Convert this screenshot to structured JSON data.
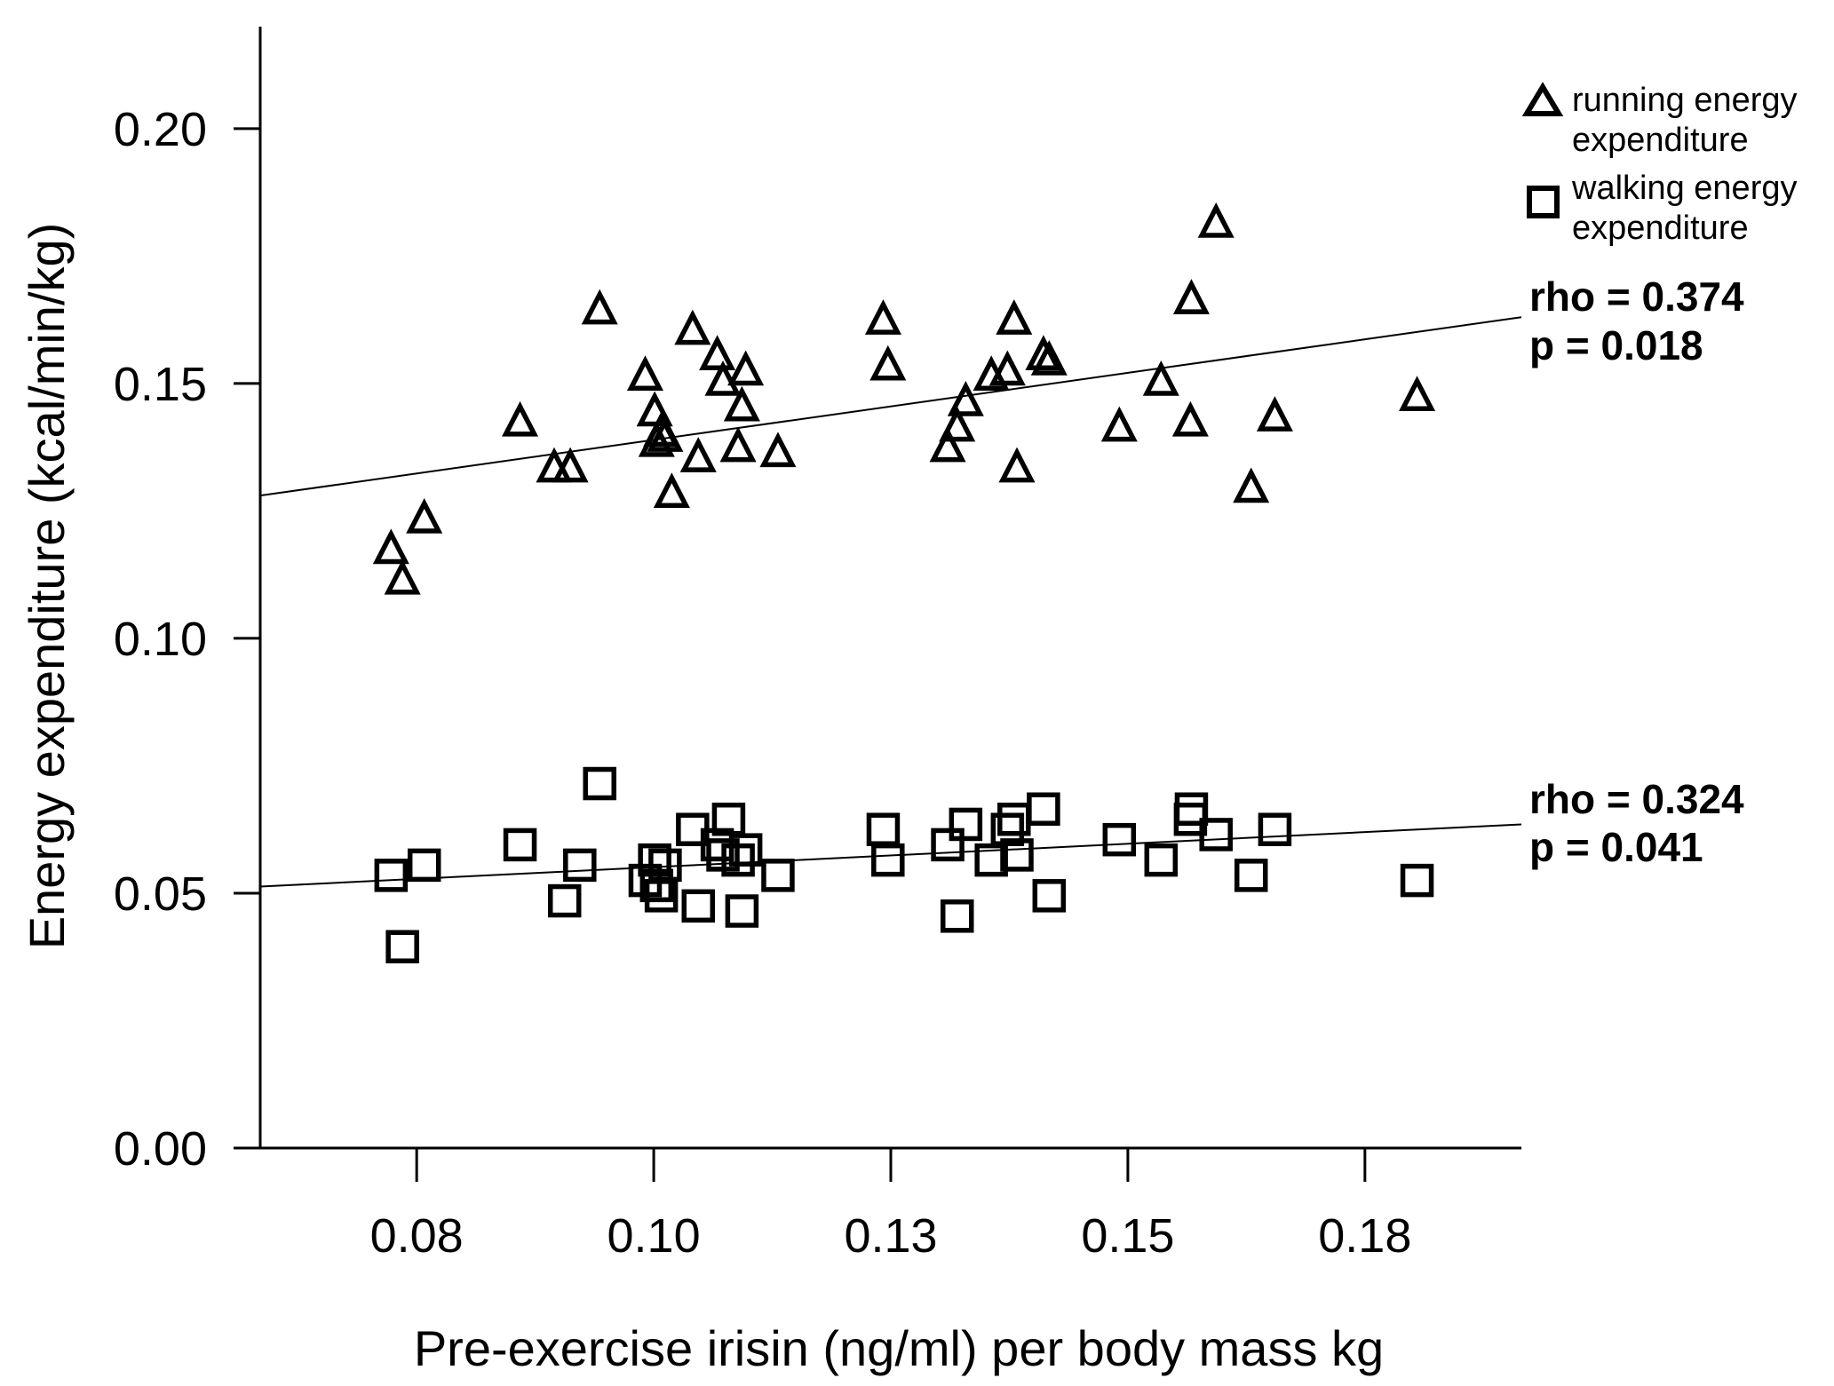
{
  "chart_data": {
    "type": "scatter",
    "title": "",
    "xlabel": "Pre-exercise irisin (ng/ml) per body mass kg",
    "ylabel": "Energy expenditure (kcal/min/kg)",
    "xlim": [
      0.0585,
      0.1915
    ],
    "ylim": [
      0.0,
      0.22
    ],
    "xticks": [
      0.075,
      0.1,
      0.125,
      0.15,
      0.175
    ],
    "xtick_labels": [
      "0.08",
      "0.10",
      "0.13",
      "0.15",
      "0.18"
    ],
    "yticks": [
      0.0,
      0.05,
      0.1,
      0.15,
      0.2
    ],
    "ytick_labels": [
      "0.00",
      "0.05",
      "0.10",
      "0.15",
      "0.20"
    ],
    "grid": false,
    "legend_position": "top-right",
    "series": [
      {
        "name": "running",
        "legend_lines": [
          "running energy",
          "expenditure"
        ],
        "marker": "triangle",
        "fit": {
          "x": [
            0.0585,
            0.1915
          ],
          "y": [
            0.128,
            0.163
          ]
        },
        "stats": {
          "rho": "rho = 0.374",
          "p": "p = 0.018"
        },
        "points": [
          [
            0.0723,
            0.1175
          ],
          [
            0.0735,
            0.1115
          ],
          [
            0.0758,
            0.1235
          ],
          [
            0.0859,
            0.1425
          ],
          [
            0.0895,
            0.1335
          ],
          [
            0.0912,
            0.1335
          ],
          [
            0.0943,
            0.1645
          ],
          [
            0.0991,
            0.1515
          ],
          [
            0.1001,
            0.1445
          ],
          [
            0.1003,
            0.1385
          ],
          [
            0.1008,
            0.1405
          ],
          [
            0.1012,
            0.1395
          ],
          [
            0.1019,
            0.1285
          ],
          [
            0.1041,
            0.1605
          ],
          [
            0.1047,
            0.1355
          ],
          [
            0.1067,
            0.1555
          ],
          [
            0.1073,
            0.1505
          ],
          [
            0.1089,
            0.1375
          ],
          [
            0.1093,
            0.1455
          ],
          [
            0.1097,
            0.1525
          ],
          [
            0.1131,
            0.1365
          ],
          [
            0.1242,
            0.1625
          ],
          [
            0.1247,
            0.1535
          ],
          [
            0.131,
            0.1375
          ],
          [
            0.132,
            0.1415
          ],
          [
            0.1329,
            0.1465
          ],
          [
            0.1356,
            0.1515
          ],
          [
            0.1373,
            0.1525
          ],
          [
            0.138,
            0.1625
          ],
          [
            0.1383,
            0.1335
          ],
          [
            0.1411,
            0.1555
          ],
          [
            0.1417,
            0.1545
          ],
          [
            0.1491,
            0.1415
          ],
          [
            0.1535,
            0.1505
          ],
          [
            0.1566,
            0.1425
          ],
          [
            0.1567,
            0.1665
          ],
          [
            0.1593,
            0.1815
          ],
          [
            0.163,
            0.1295
          ],
          [
            0.1655,
            0.1435
          ],
          [
            0.1805,
            0.1475
          ]
        ]
      },
      {
        "name": "walking",
        "legend_lines": [
          "walking energy",
          "expenditure"
        ],
        "marker": "square",
        "fit": {
          "x": [
            0.0585,
            0.1915
          ],
          "y": [
            0.0513,
            0.0635
          ]
        },
        "stats": {
          "rho": "rho = 0.324",
          "p": "p = 0.041"
        },
        "points": [
          [
            0.0723,
            0.0535
          ],
          [
            0.0735,
            0.0395
          ],
          [
            0.0758,
            0.0555
          ],
          [
            0.0859,
            0.0595
          ],
          [
            0.0906,
            0.0485
          ],
          [
            0.0922,
            0.0555
          ],
          [
            0.0943,
            0.0715
          ],
          [
            0.0991,
            0.0525
          ],
          [
            0.1001,
            0.0565
          ],
          [
            0.1003,
            0.0515
          ],
          [
            0.1008,
            0.0495
          ],
          [
            0.1012,
            0.0555
          ],
          [
            0.1041,
            0.0625
          ],
          [
            0.1047,
            0.0475
          ],
          [
            0.1067,
            0.0595
          ],
          [
            0.1073,
            0.0575
          ],
          [
            0.1079,
            0.0645
          ],
          [
            0.1089,
            0.0565
          ],
          [
            0.1093,
            0.0465
          ],
          [
            0.1097,
            0.0585
          ],
          [
            0.1131,
            0.0535
          ],
          [
            0.1242,
            0.0625
          ],
          [
            0.1247,
            0.0565
          ],
          [
            0.131,
            0.0595
          ],
          [
            0.132,
            0.0455
          ],
          [
            0.1329,
            0.0635
          ],
          [
            0.1356,
            0.0565
          ],
          [
            0.1373,
            0.0625
          ],
          [
            0.138,
            0.0645
          ],
          [
            0.1383,
            0.0575
          ],
          [
            0.1411,
            0.0665
          ],
          [
            0.1417,
            0.0495
          ],
          [
            0.1491,
            0.0605
          ],
          [
            0.1535,
            0.0565
          ],
          [
            0.1566,
            0.0645
          ],
          [
            0.1567,
            0.0665
          ],
          [
            0.1593,
            0.0615
          ],
          [
            0.163,
            0.0535
          ],
          [
            0.1655,
            0.0625
          ],
          [
            0.1805,
            0.0525
          ]
        ]
      }
    ]
  }
}
